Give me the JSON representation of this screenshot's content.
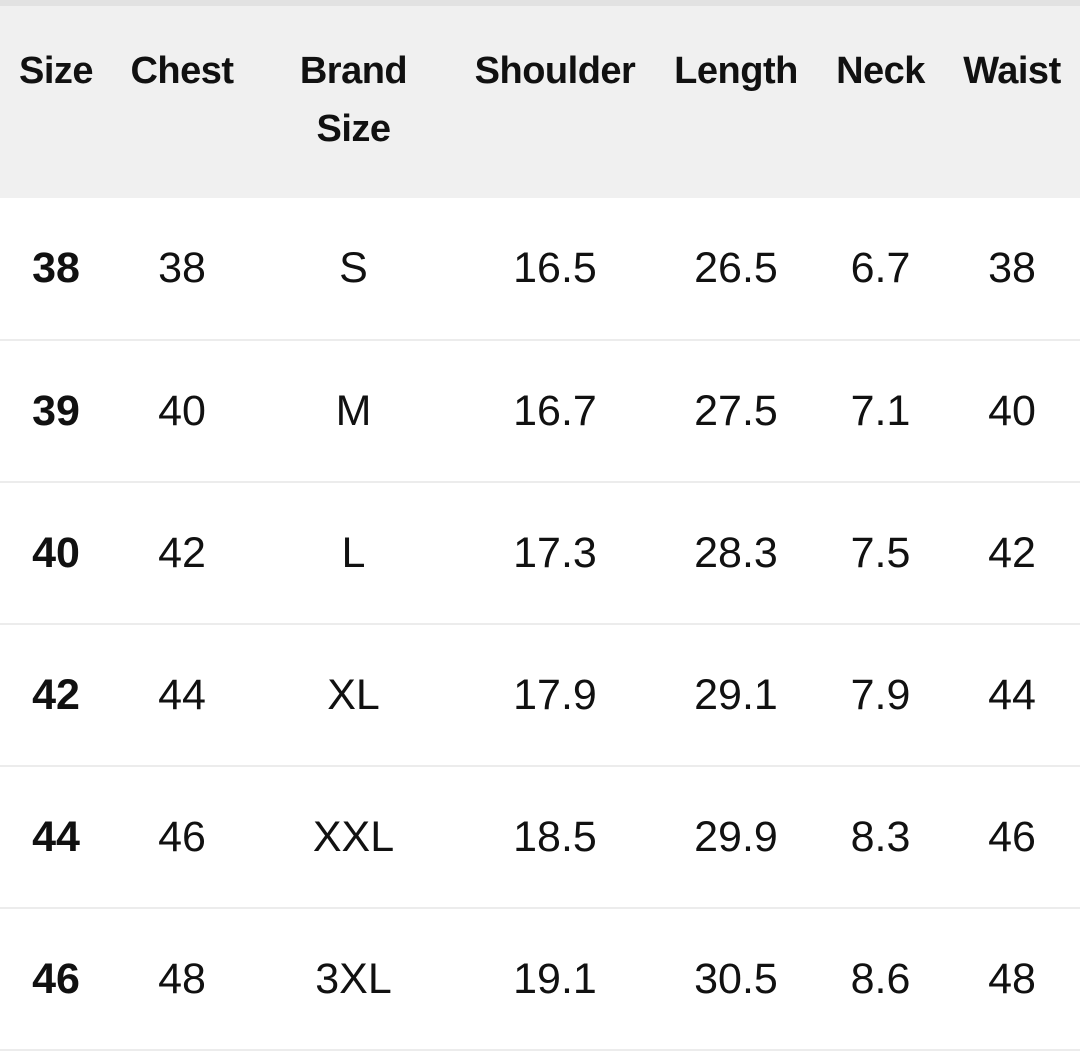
{
  "table": {
    "headers": [
      "Size",
      "Chest",
      "Brand Size",
      "Shoulder",
      "Length",
      "Neck",
      "Waist"
    ],
    "rows": [
      [
        "38",
        "38",
        "S",
        "16.5",
        "26.5",
        "6.7",
        "38"
      ],
      [
        "39",
        "40",
        "M",
        "16.7",
        "27.5",
        "7.1",
        "40"
      ],
      [
        "40",
        "42",
        "L",
        "17.3",
        "28.3",
        "7.5",
        "42"
      ],
      [
        "42",
        "44",
        "XL",
        "17.9",
        "29.1",
        "7.9",
        "44"
      ],
      [
        "44",
        "46",
        "XXL",
        "18.5",
        "29.9",
        "8.3",
        "46"
      ],
      [
        "46",
        "48",
        "3XL",
        "19.1",
        "30.5",
        "8.6",
        "48"
      ]
    ]
  }
}
